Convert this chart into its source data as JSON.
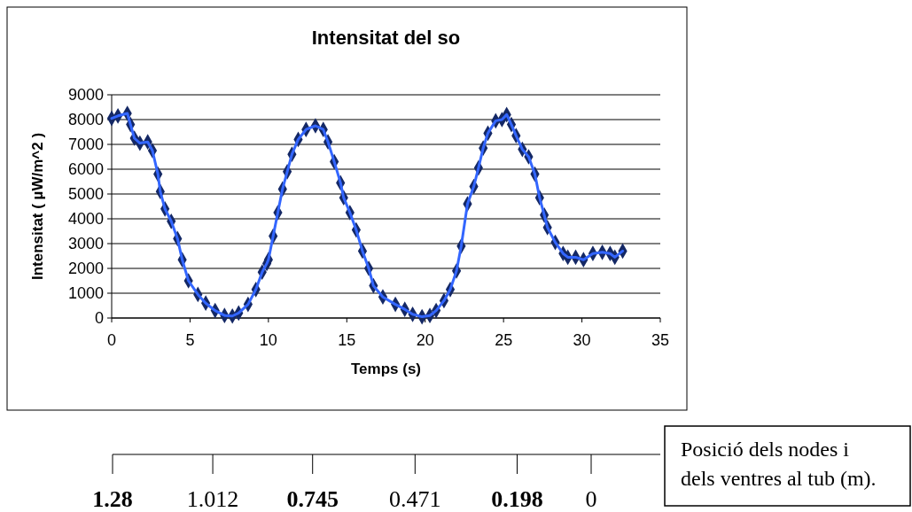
{
  "chart_data": {
    "type": "line",
    "title": "Intensitat del so",
    "xlabel": "Temps (s)",
    "ylabel": "Intensitat ( µW/m^2 )",
    "xlim": [
      0,
      35
    ],
    "xticks": [
      0,
      5,
      10,
      15,
      20,
      25,
      30,
      35
    ],
    "ylim": [
      0,
      9000
    ],
    "yticks": [
      0,
      1000,
      2000,
      3000,
      4000,
      5000,
      6000,
      7000,
      8000,
      9000
    ],
    "grid": "y",
    "marker": "diamond",
    "line_style": "solid",
    "x2lim": [
      1.28,
      0
    ],
    "x2ticks": [
      1.28,
      1.012,
      0.745,
      0.471,
      0.198,
      0
    ],
    "x2label": "Posició dels nodes i dels ventres al tub (m).",
    "series": [
      {
        "color": "#3366ff",
        "x": [
          0,
          0.4,
          1.0,
          1.2,
          1.45,
          1.8,
          2.3,
          2.6,
          2.95,
          3.1,
          3.4,
          3.8,
          4.2,
          4.5,
          4.9,
          5.5,
          6.0,
          6.6,
          7.2,
          7.7,
          8.1,
          8.7,
          9.2,
          9.6,
          9.9,
          10.0,
          10.3,
          10.6,
          10.9,
          11.2,
          11.5,
          11.9,
          12.4,
          13.0,
          13.5,
          13.8,
          14.2,
          14.6,
          14.8,
          15.2,
          15.6,
          16.0,
          16.4,
          16.7,
          17.3,
          18.1,
          18.7,
          19.2,
          19.8,
          20.3,
          20.7,
          21.2,
          21.6,
          22.0,
          22.3,
          22.7,
          23.1,
          23.4,
          23.7,
          24.0,
          24.5,
          24.9,
          25.2,
          25.5,
          25.8,
          26.2,
          26.6,
          27.0,
          27.3,
          27.6,
          27.8,
          28.3,
          28.8,
          29.1,
          29.6,
          30.1,
          30.7,
          31.3,
          31.8,
          32.1,
          32.6
        ],
        "values": [
          8050,
          8150,
          8250,
          7800,
          7250,
          7050,
          7100,
          6750,
          5800,
          5100,
          4400,
          3900,
          3200,
          2350,
          1500,
          950,
          600,
          300,
          100,
          80,
          200,
          550,
          1150,
          1850,
          2200,
          2350,
          3300,
          4250,
          5200,
          5900,
          6600,
          7200,
          7600,
          7750,
          7600,
          7100,
          6300,
          5450,
          4850,
          4250,
          3550,
          2700,
          2000,
          1300,
          850,
          550,
          350,
          150,
          50,
          100,
          300,
          700,
          1150,
          1900,
          2900,
          4600,
          5300,
          6050,
          6850,
          7450,
          7950,
          8000,
          8200,
          7800,
          7350,
          6800,
          6500,
          5800,
          4850,
          4150,
          3650,
          3050,
          2600,
          2450,
          2450,
          2350,
          2600,
          2650,
          2600,
          2450,
          2700
        ]
      }
    ]
  }
}
